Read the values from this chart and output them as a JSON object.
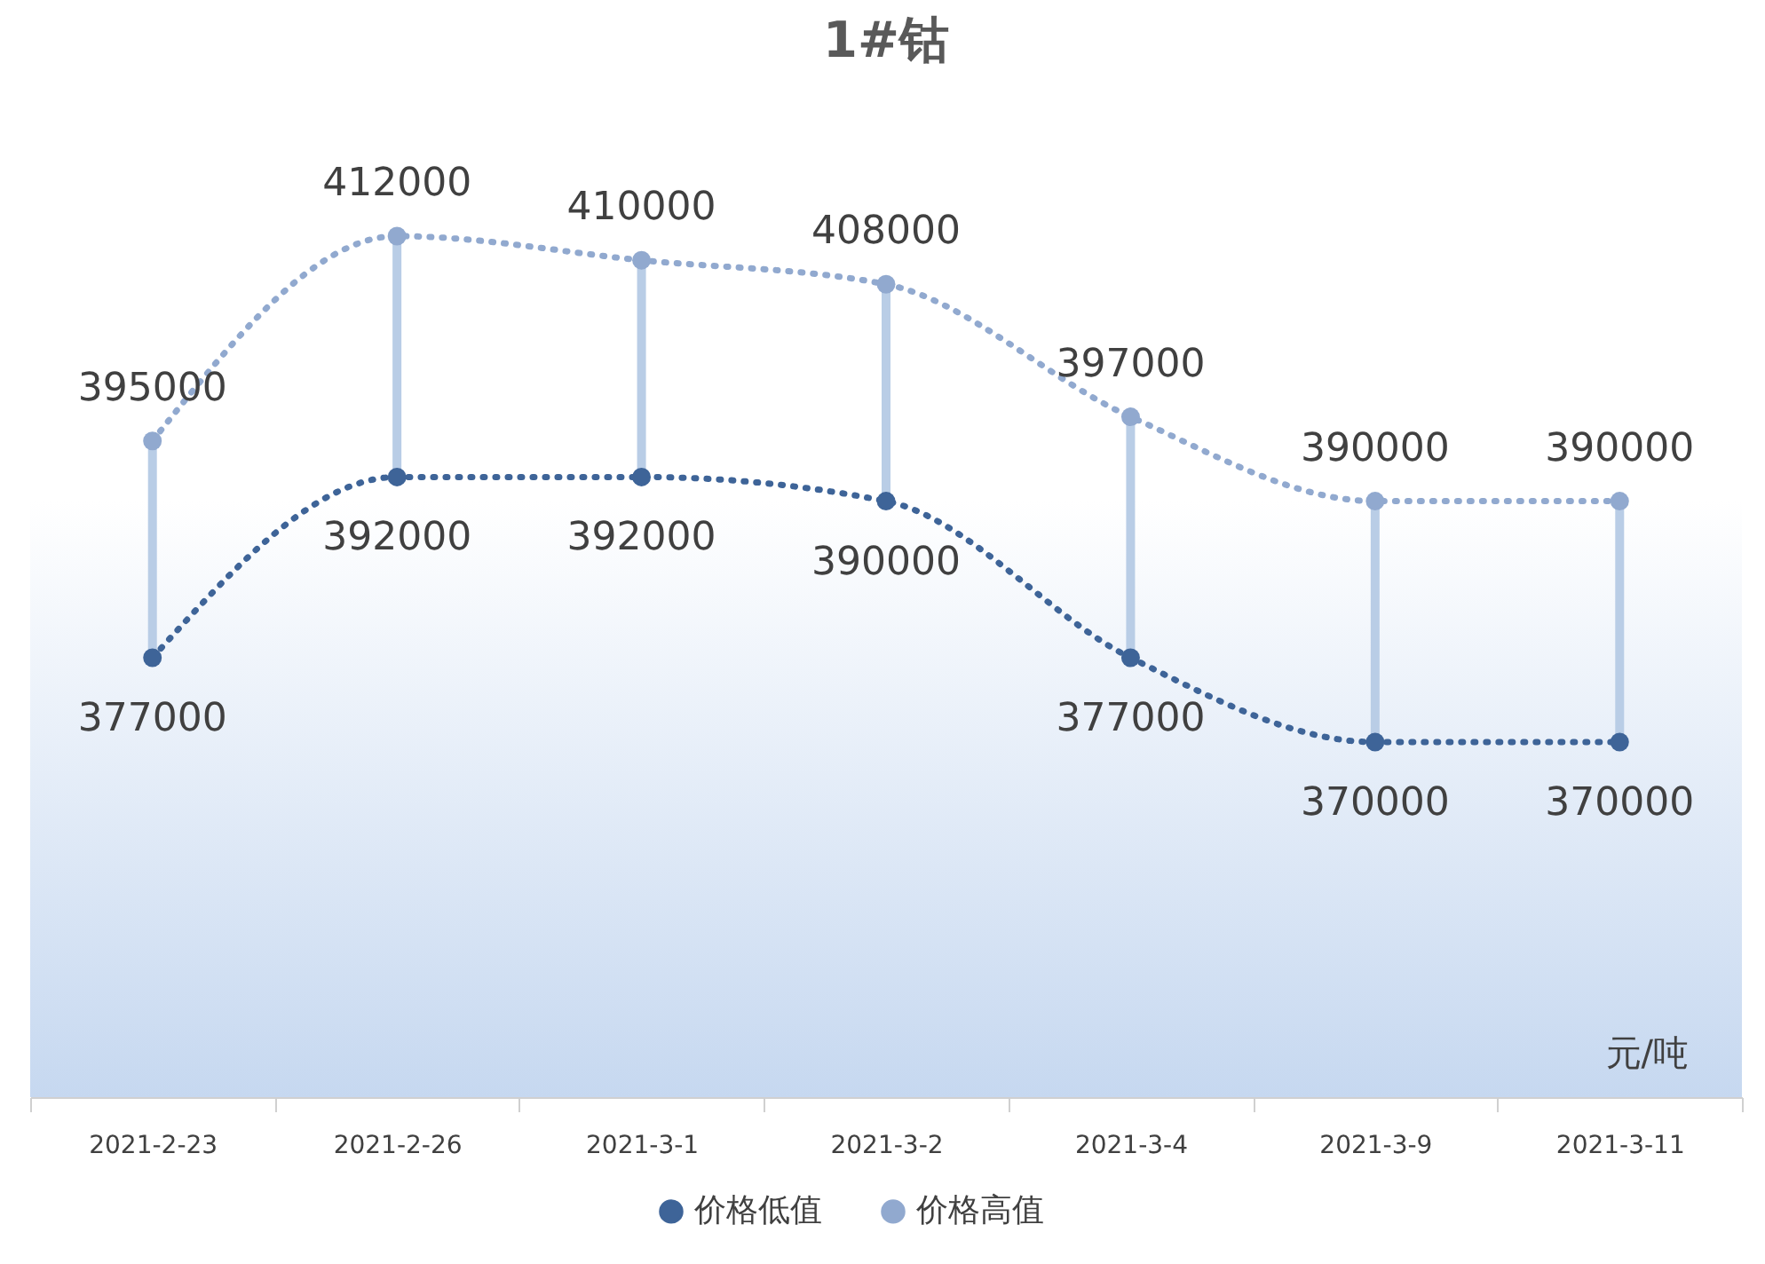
{
  "chart_data": {
    "type": "line",
    "title": "1#钴",
    "categories": [
      "2021-2-23",
      "2021-2-26",
      "2021-3-1",
      "2021-3-2",
      "2021-3-4",
      "2021-3-9",
      "2021-3-11"
    ],
    "series": [
      {
        "name": "价格低值",
        "color": "#3e6498",
        "values": [
          377000,
          392000,
          392000,
          390000,
          377000,
          370000,
          370000
        ]
      },
      {
        "name": "价格高值",
        "color": "#91a9cf",
        "values": [
          395000,
          412000,
          410000,
          408000,
          397000,
          390000,
          390000
        ]
      }
    ],
    "data_labels": true,
    "legend": "bottom",
    "marker": "circle",
    "line_style": "dotted",
    "annotations": [
      "元/吨"
    ]
  }
}
